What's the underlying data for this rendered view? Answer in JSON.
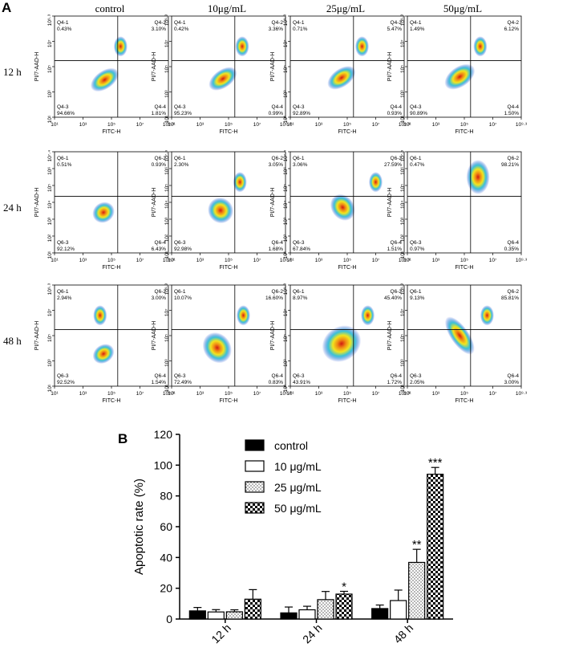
{
  "panel_a": {
    "label": "A",
    "columns": [
      "control",
      "10μg/mL",
      "25μg/mL",
      "50μg/mL"
    ],
    "x_axis_label": "FITC-H",
    "y_axis_label": "PI/7-AAD-H",
    "rows": [
      {
        "time": "12 h",
        "x_ticks": [
          "10¹",
          "10³",
          "10⁵",
          "10⁷",
          "10⁹·³"
        ],
        "y_ticks": [
          "10¹",
          "10³",
          "10⁵",
          "10⁷",
          "10⁹·³"
        ],
        "plots": [
          {
            "q1_name": "Q4-1",
            "q1": "0.43%",
            "q2_name": "Q4-2",
            "q2": "3.10%",
            "q3_name": "Q4-3",
            "q3": "94.66%",
            "q4_name": "Q4-4",
            "q4": "1.81%"
          },
          {
            "q1_name": "Q4-1",
            "q1": "0.42%",
            "q2_name": "Q4-2",
            "q2": "3.36%",
            "q3_name": "Q4-3",
            "q3": "95.23%",
            "q4_name": "Q4-4",
            "q4": "0.99%"
          },
          {
            "q1_name": "Q4-1",
            "q1": "0.71%",
            "q2_name": "Q4-2",
            "q2": "5.47%",
            "q3_name": "Q4-3",
            "q3": "92.89%",
            "q4_name": "Q4-4",
            "q4": "0.93%"
          },
          {
            "q1_name": "Q4-1",
            "q1": "1.49%",
            "q2_name": "Q4-2",
            "q2": "6.12%",
            "q3_name": "Q4-3",
            "q3": "90.89%",
            "q4_name": "Q4-4",
            "q4": "1.50%"
          }
        ]
      },
      {
        "time": "24 h",
        "x_ticks": [
          "10¹",
          "10³",
          "10⁵",
          "10⁷",
          "10⁹·³"
        ],
        "y_ticks": [
          "10¹",
          "10²",
          "10³",
          "10⁴",
          "10⁵",
          "10⁶",
          "10⁷·⁴"
        ],
        "plots": [
          {
            "q1_name": "Q6-1",
            "q1": "0.51%",
            "q2_name": "Q6-2",
            "q2": "0.93%",
            "q3_name": "Q6-3",
            "q3": "92.12%",
            "q4_name": "Q6-4",
            "q4": "6.43%"
          },
          {
            "q1_name": "Q6-1",
            "q1": "2.30%",
            "q2_name": "Q6-2",
            "q2": "3.05%",
            "q3_name": "Q6-3",
            "q3": "92.98%",
            "q4_name": "Q6-4",
            "q4": "1.68%"
          },
          {
            "q1_name": "Q6-1",
            "q1": "3.06%",
            "q2_name": "Q6-2",
            "q2": "27.59%",
            "q3_name": "Q6-3",
            "q3": "67.84%",
            "q4_name": "Q6-4",
            "q4": "1.51%"
          },
          {
            "q1_name": "Q6-1",
            "q1": "0.47%",
            "q2_name": "Q6-2",
            "q2": "98.21%",
            "q3_name": "Q6-3",
            "q3": "0.97%",
            "q4_name": "Q6-4",
            "q4": "0.35%"
          }
        ]
      },
      {
        "time": "48 h",
        "x_ticks": [
          "10¹",
          "10³",
          "10⁵",
          "10⁷",
          "10⁹·³"
        ],
        "y_ticks": [
          "10¹",
          "10³",
          "10⁵",
          "10⁷",
          "10⁹·³"
        ],
        "plots": [
          {
            "q1_name": "Q6-1",
            "q1": "2.94%",
            "q2_name": "Q6-2",
            "q2": "3.00%",
            "q3_name": "Q6-3",
            "q3": "92.52%",
            "q4_name": "Q6-4",
            "q4": "1.54%"
          },
          {
            "q1_name": "Q6-1",
            "q1": "10.07%",
            "q2_name": "Q6-2",
            "q2": "16.60%",
            "q3_name": "Q6-3",
            "q3": "72.49%",
            "q4_name": "Q6-4",
            "q4": "0.83%"
          },
          {
            "q1_name": "Q6-1",
            "q1": "8.97%",
            "q2_name": "Q6-2",
            "q2": "45.40%",
            "q3_name": "Q6-3",
            "q3": "43.91%",
            "q4_name": "Q6-4",
            "q4": "1.72%"
          },
          {
            "q1_name": "Q6-1",
            "q1": "9.13%",
            "q2_name": "Q6-2",
            "q2": "85.81%",
            "q3_name": "Q6-3",
            "q3": "2.05%",
            "q4_name": "Q6-4",
            "q4": "3.00%"
          }
        ]
      }
    ]
  },
  "chart_data": {
    "type": "bar",
    "panel_label": "B",
    "title": "",
    "xlabel": "",
    "ylabel": "Apoptotic rate (%)",
    "ylim": [
      0,
      120
    ],
    "yticks": [
      "0",
      "20",
      "40",
      "60",
      "80",
      "100",
      "120"
    ],
    "categories": [
      "12 h",
      "24 h",
      "48 h"
    ],
    "series": [
      {
        "name": "control",
        "pattern": "solid",
        "values": [
          5.3,
          4.0,
          6.8
        ],
        "errors": [
          2.2,
          3.8,
          2.3
        ],
        "sig": [
          "",
          "",
          ""
        ]
      },
      {
        "name": "10 μg/mL",
        "pattern": "white",
        "values": [
          4.6,
          6.0,
          12.0
        ],
        "errors": [
          1.5,
          2.3,
          6.8
        ],
        "sig": [
          "",
          "",
          ""
        ]
      },
      {
        "name": "25 μg/mL",
        "pattern": "dots",
        "values": [
          4.7,
          12.6,
          36.8
        ],
        "errors": [
          1.3,
          5.3,
          8.5
        ],
        "sig": [
          "",
          "",
          "**"
        ]
      },
      {
        "name": "50 μg/mL",
        "pattern": "check",
        "values": [
          12.9,
          16.2,
          94.1
        ],
        "errors": [
          6.2,
          1.8,
          4.4
        ],
        "sig": [
          "",
          "*",
          "***"
        ]
      }
    ]
  },
  "colors": {
    "axis": "#000000",
    "bar_solid": "#000000",
    "bar_fill": "#ffffff",
    "dots": "#1c3fb8"
  }
}
